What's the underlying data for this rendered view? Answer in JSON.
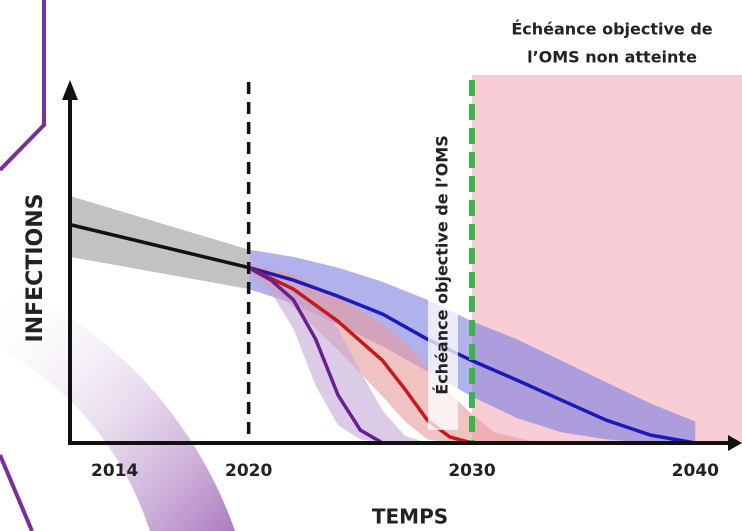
{
  "chart_data": {
    "type": "line",
    "annotations": {
      "missed": [
        "Échéance objective de",
        "l’OMS non atteinte"
      ],
      "target": "Échéance objective de l’OMS"
    },
    "xlabel": "TEMPS",
    "ylabel": "INFECTIONS",
    "xlim": [
      2012,
      2042
    ],
    "ylim": [
      0,
      100
    ],
    "xticks": [
      2014,
      2020,
      2030,
      2040
    ],
    "baseline_year": 2020,
    "target_year": 2030,
    "series": [
      {
        "color": "#111111",
        "band_color": "#9a9a9a",
        "x": [
          2012,
          2020
        ],
        "values": [
          61,
          49
        ],
        "upper": [
          69,
          54
        ],
        "lower": [
          52,
          43
        ]
      },
      {
        "color": "#1a1ab8",
        "band_color": "#7d7de0",
        "x": [
          2020,
          2022,
          2024,
          2026,
          2028,
          2030,
          2032,
          2034,
          2036,
          2038,
          2040
        ],
        "values": [
          49,
          45.5,
          41,
          36,
          29,
          23,
          17.6,
          12,
          6.4,
          2.2,
          0
        ],
        "upper": [
          54,
          52,
          49,
          45,
          40,
          34,
          29,
          23,
          17,
          11,
          6
        ],
        "lower": [
          43,
          39,
          33,
          27,
          20,
          13,
          7,
          3,
          1,
          0,
          0
        ]
      },
      {
        "color": "#c41a1a",
        "band_color": "#e89a9a",
        "x": [
          2020,
          2022,
          2024,
          2026,
          2027,
          2028,
          2029,
          2030,
          2031,
          2033
        ],
        "values": [
          49,
          43,
          34,
          23,
          15,
          6.4,
          1.7,
          0,
          0,
          0
        ],
        "upper": [
          50,
          47,
          41,
          33,
          28,
          21,
          14,
          8,
          3,
          0
        ],
        "lower": [
          48,
          38,
          26,
          13,
          6,
          1,
          0,
          0,
          0,
          0
        ]
      },
      {
        "color": "#6a1f8f",
        "band_color": "#c5a8d6",
        "x": [
          2020,
          2021,
          2022,
          2023,
          2024,
          2025,
          2026,
          2027,
          2028
        ],
        "values": [
          49,
          45.5,
          40,
          29,
          13.4,
          3.6,
          0,
          0,
          0
        ],
        "upper": [
          50,
          48,
          45,
          40,
          32,
          20,
          9,
          2,
          0
        ],
        "lower": [
          48,
          42,
          32,
          16,
          5,
          1,
          0,
          0,
          0
        ]
      }
    ]
  }
}
